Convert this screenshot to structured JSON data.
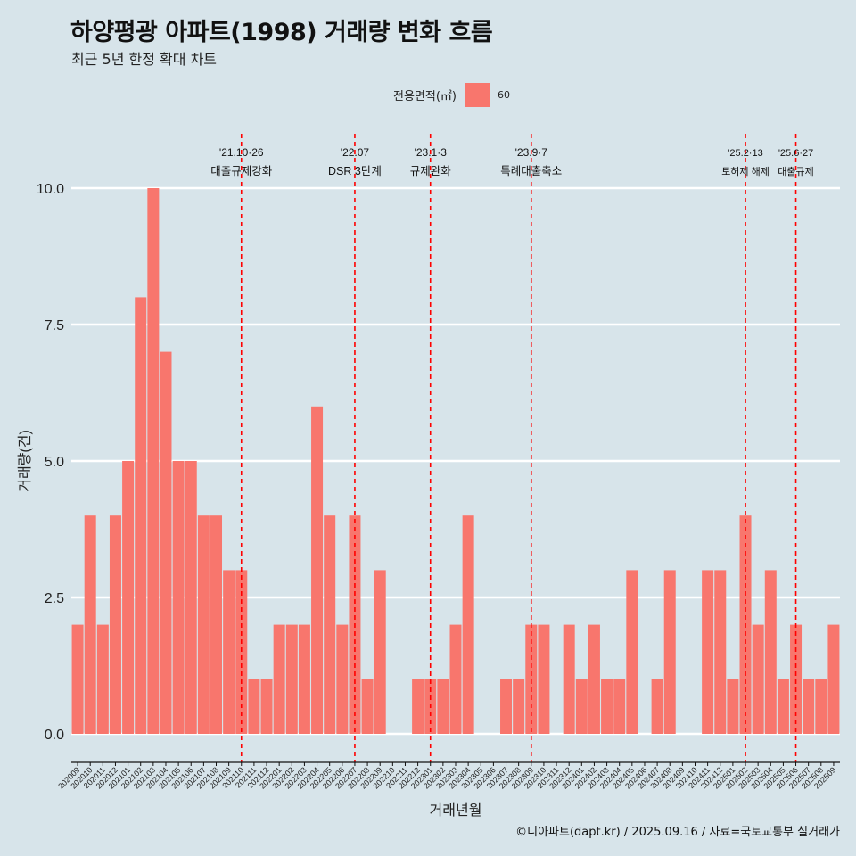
{
  "title": "하양평광 아파트(1998) 거래량 변화 흐름",
  "subtitle": "최근 5년 한정 확대 차트",
  "legend": {
    "title": "전용면적(㎡)",
    "key": "60"
  },
  "caption": "©디아파트(dapt.kr) / 2025.09.16 / 자료=국토교통부 실거래가",
  "colors": {
    "bar": "#f8766d",
    "background": "#d7e4ea",
    "grid": "#ffffff",
    "event_line": "#ff0000"
  },
  "chart_data": {
    "type": "bar",
    "xlabel": "거래년월",
    "ylabel": "거래량(건)",
    "ylim": [
      0,
      10
    ],
    "yticks": [
      "0.0",
      "2.5",
      "5.0",
      "7.5",
      "10.0"
    ],
    "grid": true,
    "legend_position": "top",
    "categories": [
      "202009",
      "202010",
      "202011",
      "202012",
      "202101",
      "202102",
      "202103",
      "202104",
      "202105",
      "202106",
      "202107",
      "202108",
      "202109",
      "202110",
      "202111",
      "202112",
      "202201",
      "202202",
      "202203",
      "202204",
      "202205",
      "202206",
      "202207",
      "202208",
      "202209",
      "202210",
      "202211",
      "202212",
      "202301",
      "202302",
      "202303",
      "202304",
      "202305",
      "202306",
      "202307",
      "202308",
      "202309",
      "202310",
      "202311",
      "202312",
      "202401",
      "202402",
      "202403",
      "202404",
      "202405",
      "202406",
      "202407",
      "202408",
      "202409",
      "202410",
      "202411",
      "202412",
      "202501",
      "202502",
      "202503",
      "202504",
      "202505",
      "202506",
      "202507",
      "202508",
      "202509"
    ],
    "series": [
      {
        "name": "60",
        "values": [
          2,
          4,
          2,
          4,
          5,
          8,
          10,
          7,
          5,
          5,
          4,
          4,
          3,
          3,
          1,
          1,
          2,
          2,
          2,
          6,
          4,
          2,
          4,
          1,
          3,
          0,
          0,
          1,
          1,
          1,
          2,
          4,
          0,
          0,
          1,
          1,
          2,
          2,
          0,
          2,
          1,
          2,
          1,
          1,
          3,
          0,
          1,
          3,
          0,
          0,
          3,
          3,
          1,
          4,
          2,
          3,
          1,
          2,
          1,
          1,
          2
        ]
      }
    ],
    "events": [
      {
        "date": "'21.10·26",
        "label": "대출규제강화",
        "index": 13
      },
      {
        "date": "'22.07",
        "label": "DSR 3단계",
        "index": 22
      },
      {
        "date": "'23.1·3",
        "label": "규제완화",
        "index": 28
      },
      {
        "date": "'23.9·7",
        "label": "특례대출축소",
        "index": 36
      },
      {
        "date": "'25.2·13",
        "label": "토허제 해제",
        "index": 53
      },
      {
        "date": "'25.6·27",
        "label": "대출규제",
        "index": 57
      }
    ]
  }
}
